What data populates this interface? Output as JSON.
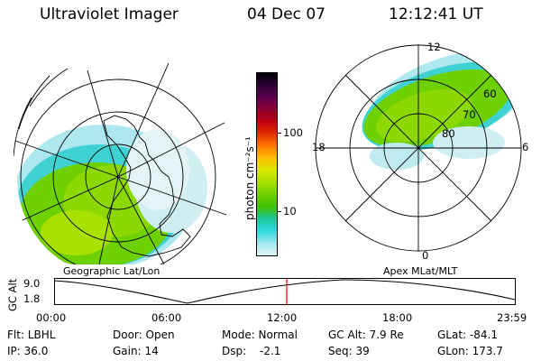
{
  "header": {
    "title": "Ultraviolet Imager",
    "date": "04 Dec 07",
    "time": "12:12:41 UT"
  },
  "colorbar": {
    "unit_label": "photon cm⁻²s⁻¹",
    "ticks": [
      "100",
      "10"
    ],
    "colors": [
      "#000000",
      "#2a0033",
      "#5a0050",
      "#8a0030",
      "#c00010",
      "#e03000",
      "#ff7a00",
      "#ffbf00",
      "#d8e800",
      "#a8e000",
      "#6fd000",
      "#40c000",
      "#20c8a0",
      "#30d8e0",
      "#a0e8ee",
      "#e6f4f6"
    ]
  },
  "left_map": {
    "caption": "Geographic Lat/Lon"
  },
  "right_map": {
    "caption": "Apex MLat/MLT",
    "mlt_labels": [
      "12",
      "18",
      "6",
      "0"
    ],
    "lat_labels": [
      "60",
      "70",
      "80"
    ]
  },
  "altitude_plot": {
    "ylabel": "GC Alt",
    "yticks": [
      "9.0",
      "1.8"
    ],
    "xticks": [
      "00:00",
      "06:00",
      "12:00",
      "18:00",
      "23:59"
    ]
  },
  "info": {
    "flt": "Flt: LBHL",
    "door": "Door: Open",
    "mode": "Mode: Normal",
    "gc_alt": "GC Alt: 7.9 Re",
    "glat": "GLat: -84.1",
    "ip": "IP: 36.0",
    "gain": "Gain: 14",
    "dsp_label": "Dsp:",
    "dsp_value": "-2.1",
    "seq": "Seq: 39",
    "glon": "GLon: 173.7"
  }
}
